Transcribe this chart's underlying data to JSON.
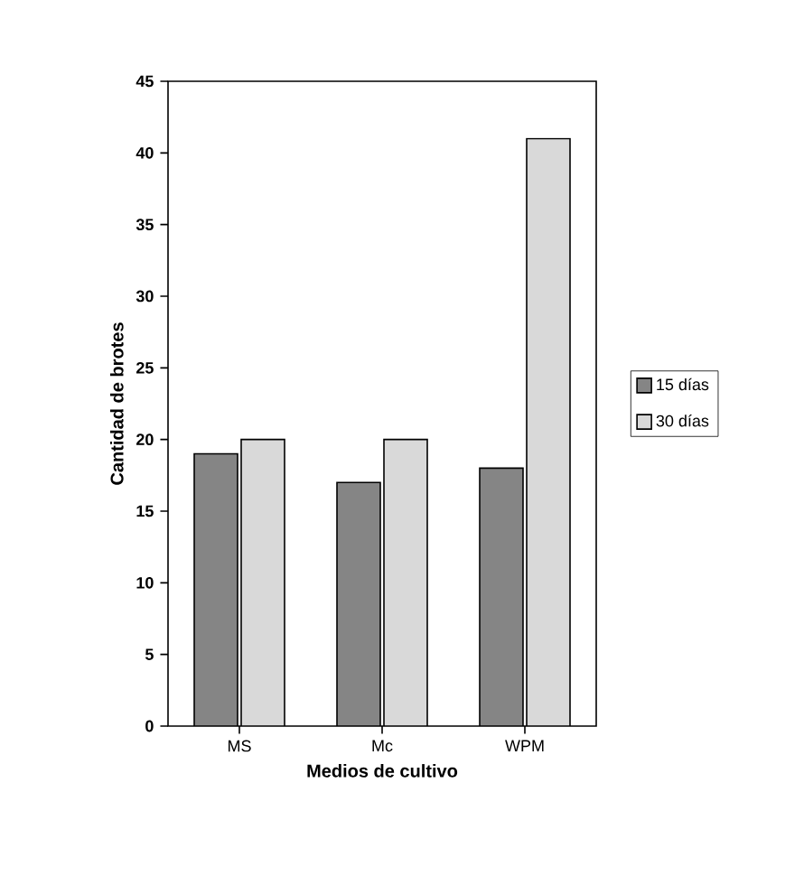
{
  "chart_data": {
    "type": "bar",
    "xlabel": "Medios de cultivo",
    "ylabel": "Cantidad de brotes",
    "categories": [
      "MS",
      "Mc",
      "WPM"
    ],
    "series": [
      {
        "name": "15 días",
        "color": "#858585",
        "values": [
          19,
          17,
          18
        ]
      },
      {
        "name": "30 días",
        "color": "#d9d9d9",
        "values": [
          20,
          20,
          41
        ]
      }
    ],
    "ylim": [
      0,
      45
    ],
    "yticks": [
      0,
      5,
      10,
      15,
      20,
      25,
      30,
      35,
      40,
      45
    ],
    "legend": "right",
    "grid": false
  }
}
